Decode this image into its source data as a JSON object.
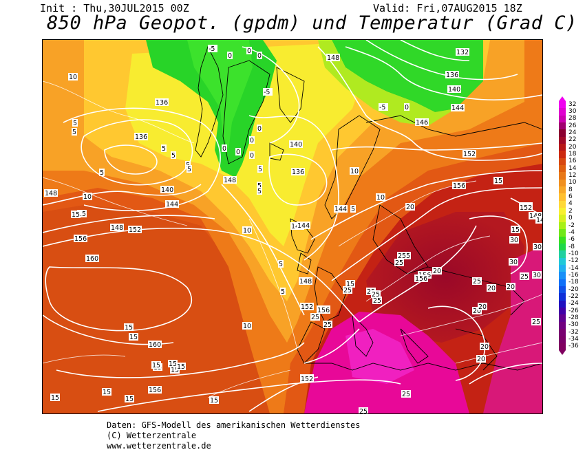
{
  "header": {
    "init": "Init : Thu,30JUL2015 00Z",
    "valid": "Valid: Fri,07AUG2015 18Z",
    "title": "850 hPa Geopot. (gpdm) und Temperatur (Grad C)"
  },
  "footer": {
    "line1": "Daten: GFS-Modell des amerikanischen Wetterdienstes",
    "line2": "(C) Wetterzentrale",
    "line3": "www.wetterzentrale.de"
  },
  "legend": {
    "unit": "Grad C",
    "labels": [
      "32",
      "30",
      "28",
      "26",
      "24",
      "22",
      "20",
      "18",
      "16",
      "14",
      "12",
      "10",
      "8",
      "6",
      "4",
      "2",
      "0",
      "-2",
      "-4",
      "-6",
      "-8",
      "-10",
      "-12",
      "-14",
      "-16",
      "-18",
      "-20",
      "-22",
      "-24",
      "-26",
      "-28",
      "-30",
      "-32",
      "-34",
      "-36"
    ],
    "colors": [
      "#f000f0",
      "#e000d0",
      "#cc00b0",
      "#a00070",
      "#8a0030",
      "#a00a28",
      "#b81818",
      "#cc2a10",
      "#d84810",
      "#e06010",
      "#e87818",
      "#f09020",
      "#f8a828",
      "#ffc030",
      "#ffd838",
      "#f8f030",
      "#d8f020",
      "#a8f018",
      "#70e818",
      "#38e020",
      "#20d848",
      "#20d0a0",
      "#20c8d8",
      "#20b0f0",
      "#1890f8",
      "#1070f8",
      "#1050e8",
      "#1030d8",
      "#2010c0",
      "#4000a8",
      "#600090",
      "#700080",
      "#780070",
      "#7a0068",
      "#800060"
    ]
  },
  "map_labels": {
    "temperature": [
      {
        "t": "-5"
      },
      {
        "t": "0"
      },
      {
        "t": "0"
      },
      {
        "t": "0"
      },
      {
        "t": "-5"
      },
      {
        "t": "0"
      },
      {
        "t": "0"
      },
      {
        "t": "0"
      },
      {
        "t": "0"
      },
      {
        "t": "0"
      },
      {
        "t": "-5"
      },
      {
        "t": "0"
      },
      {
        "t": "10"
      },
      {
        "t": "5"
      },
      {
        "t": "5"
      },
      {
        "t": "5"
      },
      {
        "t": "5"
      },
      {
        "t": "5"
      },
      {
        "t": "5"
      },
      {
        "t": "10"
      },
      {
        "t": "15"
      },
      {
        "t": "5"
      },
      {
        "t": "5"
      },
      {
        "t": "5"
      },
      {
        "t": "5"
      },
      {
        "t": "10"
      },
      {
        "t": "10"
      },
      {
        "t": "5"
      },
      {
        "t": "5"
      },
      {
        "t": "5"
      },
      {
        "t": "10"
      },
      {
        "t": "10"
      },
      {
        "t": "15"
      },
      {
        "t": "15"
      },
      {
        "t": "15"
      },
      {
        "t": "15"
      },
      {
        "t": "15"
      },
      {
        "t": "15"
      },
      {
        "t": "15"
      },
      {
        "t": "15"
      },
      {
        "t": "15"
      },
      {
        "t": "15"
      },
      {
        "t": "15"
      },
      {
        "t": "15"
      },
      {
        "t": "15"
      },
      {
        "t": "15"
      },
      {
        "t": "15"
      },
      {
        "t": "20"
      },
      {
        "t": "20"
      },
      {
        "t": "20"
      },
      {
        "t": "20"
      },
      {
        "t": "20"
      },
      {
        "t": "20"
      },
      {
        "t": "20"
      },
      {
        "t": "20"
      },
      {
        "t": "25"
      },
      {
        "t": "25"
      },
      {
        "t": "25"
      },
      {
        "t": "25"
      },
      {
        "t": "25"
      },
      {
        "t": "25"
      },
      {
        "t": "25"
      },
      {
        "t": "25"
      },
      {
        "t": "25"
      },
      {
        "t": "25"
      },
      {
        "t": "25"
      },
      {
        "t": "25"
      },
      {
        "t": "255"
      },
      {
        "t": "30"
      },
      {
        "t": "30"
      },
      {
        "t": "30"
      },
      {
        "t": "30"
      }
    ],
    "geopotential": [
      {
        "t": "132"
      },
      {
        "t": "136"
      },
      {
        "t": "140"
      },
      {
        "t": "144"
      },
      {
        "t": "146"
      },
      {
        "t": "148"
      },
      {
        "t": "148"
      },
      {
        "t": "152"
      },
      {
        "t": "136"
      },
      {
        "t": "136"
      },
      {
        "t": "140"
      },
      {
        "t": "144"
      },
      {
        "t": "148"
      },
      {
        "t": "148"
      },
      {
        "t": "144"
      },
      {
        "t": "140"
      },
      {
        "t": "136"
      },
      {
        "t": "144"
      },
      {
        "t": "148"
      },
      {
        "t": "152"
      },
      {
        "t": "156"
      },
      {
        "t": "160"
      },
      {
        "t": "160"
      },
      {
        "t": "156"
      },
      {
        "t": "152"
      },
      {
        "t": "152"
      },
      {
        "t": "156"
      },
      {
        "t": "156"
      },
      {
        "t": "156"
      },
      {
        "t": "156"
      },
      {
        "t": "152"
      },
      {
        "t": "152"
      },
      {
        "t": "148"
      },
      {
        "t": "152"
      },
      {
        "t": "156"
      },
      {
        "t": "148"
      },
      {
        "t": "144"
      },
      {
        "t": "148"
      }
    ]
  }
}
